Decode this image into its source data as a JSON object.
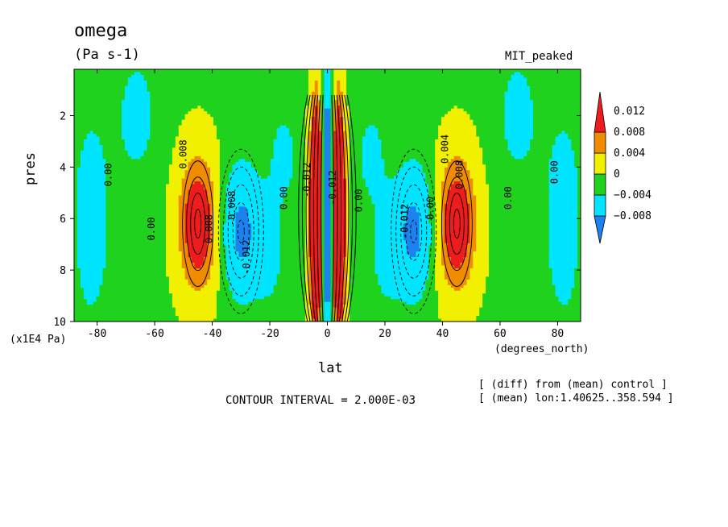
{
  "header": {
    "title": "omega",
    "units": "(Pa s-1)",
    "run_name": "MIT_peaked"
  },
  "footer": {
    "contour_interval": "CONTOUR INTERVAL = 2.000E-03",
    "diff_note": "[ (diff) from (mean) control ]",
    "mean_note": "[ (mean) lon:1.40625..358.594 ]"
  },
  "chart_data": {
    "type": "heatmap",
    "title": "omega",
    "subtitle": "(Pa s-1)",
    "xlabel": "lat",
    "x_units": "(degrees_north)",
    "ylabel": "pres",
    "y_units": "(x1E4 Pa)",
    "xlim": [
      -88,
      88
    ],
    "ylim": [
      10,
      0.2
    ],
    "x_ticks": [
      -80,
      -60,
      -40,
      -20,
      0,
      20,
      40,
      60,
      80
    ],
    "y_ticks": [
      2,
      4,
      6,
      8,
      10
    ],
    "contour_interval": 0.002,
    "colorbar": {
      "levels": [
        -0.012,
        -0.008,
        -0.004,
        0,
        0.004,
        0.008,
        0.012
      ],
      "labels": [
        "0.012",
        "0.008",
        "0.004",
        "0",
        "−0.004",
        "−0.008"
      ],
      "colors": [
        "#1c82f0",
        "#00e5ff",
        "#1ed21e",
        "#f0f000",
        "#f08c00",
        "#ee1c1c"
      ]
    },
    "contour_labels": [
      "0.00",
      "0.004",
      "0.008",
      "-0.004",
      "-0.008",
      "-0.012"
    ],
    "features": [
      {
        "lat": -45,
        "pres": 6.2,
        "value": 0.012
      },
      {
        "lat": 45,
        "pres": 6.2,
        "value": 0.012
      },
      {
        "lat": -30,
        "pres": 6.5,
        "value": -0.012
      },
      {
        "lat": 30,
        "pres": 6.5,
        "value": -0.012
      },
      {
        "lat": -4,
        "pres": 6,
        "value": 0.03
      },
      {
        "lat": 4,
        "pres": 6,
        "value": 0.03
      },
      {
        "lat": 0,
        "pres": 5,
        "value": -0.03
      }
    ]
  }
}
